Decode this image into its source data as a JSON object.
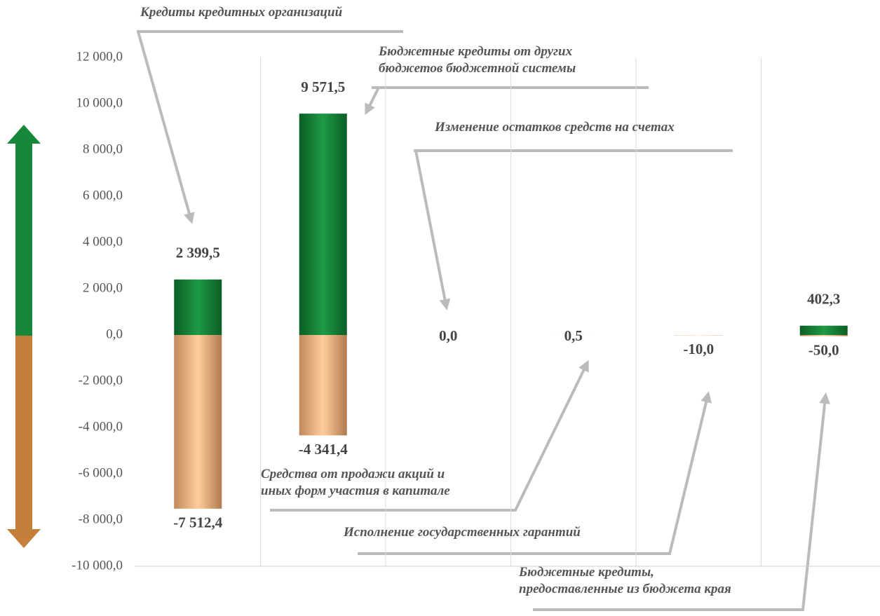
{
  "chart_data": {
    "type": "bar",
    "categories": [
      "Кредиты кредитных организаций",
      "Бюджетные кредиты от других\nбюджетов бюджетной системы",
      "Изменение остатков средств на счетах",
      "Средства от продажи акций и\nиных форм участия в капитале",
      "Исполнение государственных гарантий",
      "Бюджетные кредиты,\nпредоставленные из бюджета края"
    ],
    "series": [
      {
        "color": "#17883a",
        "values": [
          2399.5,
          9571.5,
          0.0,
          0.5,
          null,
          402.3
        ],
        "value_labels": [
          "2 399,5",
          "9 571,5",
          "0,0",
          "0,5",
          null,
          "402,3"
        ]
      },
      {
        "color": "#f9c28f",
        "values": [
          -7512.4,
          -4341.4,
          null,
          null,
          -10.0,
          -50.0
        ],
        "value_labels": [
          "-7 512,4",
          "-4 341,4",
          null,
          null,
          "-10,0",
          "-50,0"
        ]
      }
    ],
    "ylim": [
      -10000,
      12000
    ],
    "yticks": [
      {
        "value": -10000,
        "label": "-10 000,0"
      },
      {
        "value": -8000,
        "label": "-8 000,0"
      },
      {
        "value": -6000,
        "label": "-6 000,0"
      },
      {
        "value": -4000,
        "label": "-4 000,0"
      },
      {
        "value": -2000,
        "label": "-2 000,0"
      },
      {
        "value": 0,
        "label": "0,0"
      },
      {
        "value": 2000,
        "label": "2 000,0"
      },
      {
        "value": 4000,
        "label": "4 000,0"
      },
      {
        "value": 6000,
        "label": "6 000,0"
      },
      {
        "value": 8000,
        "label": "8 000,0"
      },
      {
        "value": 10000,
        "label": "10 000,0"
      },
      {
        "value": 12000,
        "label": "12 000,0"
      }
    ],
    "grid": false
  }
}
